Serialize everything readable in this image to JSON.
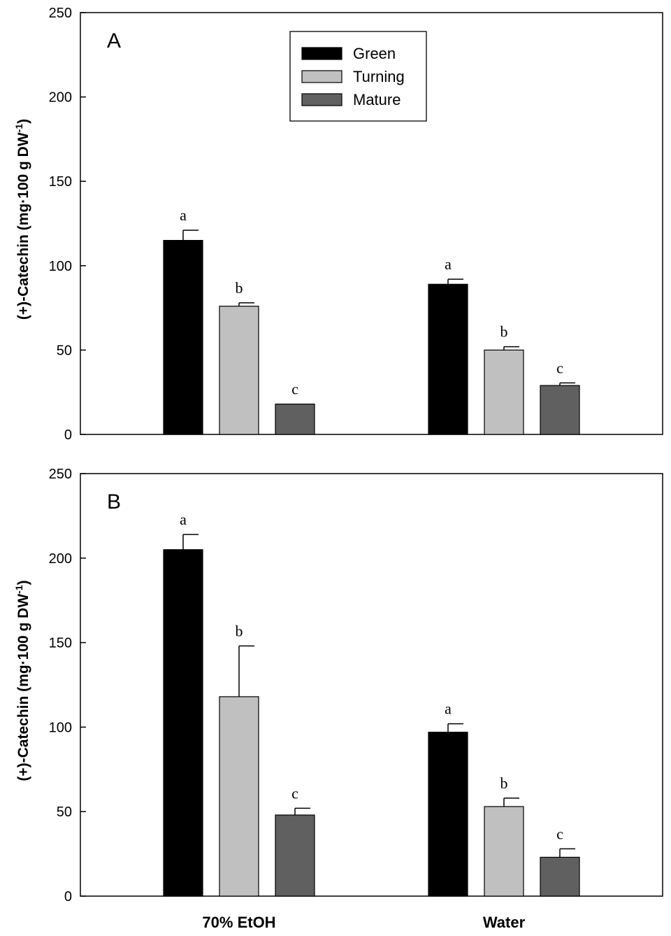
{
  "chart_data": [
    {
      "type": "bar",
      "panel_label": "A",
      "title": "",
      "xlabel": "",
      "ylabel": "(+)-Catechin (mg·100 g DW",
      "ylabel_sup": "-1",
      "ylabel_close": ")",
      "ylim": [
        0,
        250
      ],
      "yticks": [
        0,
        50,
        100,
        150,
        200,
        250
      ],
      "categories": [
        "70% EtOH",
        "Water"
      ],
      "show_category_labels": false,
      "legend": {
        "placement": "top-center"
      },
      "series": [
        {
          "name": "Green",
          "color": "#000000",
          "values": [
            115,
            89
          ],
          "errors": [
            6,
            3
          ],
          "letters": [
            "a",
            "a"
          ]
        },
        {
          "name": "Turning",
          "color": "#c0c0c0",
          "values": [
            76,
            50
          ],
          "errors": [
            2,
            2
          ],
          "letters": [
            "b",
            "b"
          ]
        },
        {
          "name": "Mature",
          "color": "#606060",
          "values": [
            18,
            29
          ],
          "errors": [
            0,
            1.5
          ],
          "letters": [
            "c",
            "c"
          ]
        }
      ]
    },
    {
      "type": "bar",
      "panel_label": "B",
      "title": "",
      "xlabel": "",
      "ylabel": "(+)-Catechin (mg·100 g DW",
      "ylabel_sup": "-1",
      "ylabel_close": ")",
      "ylim": [
        0,
        250
      ],
      "yticks": [
        0,
        50,
        100,
        150,
        200,
        250
      ],
      "categories": [
        "70% EtOH",
        "Water"
      ],
      "show_category_labels": true,
      "legend": null,
      "series": [
        {
          "name": "Green",
          "color": "#000000",
          "values": [
            205,
            97
          ],
          "errors": [
            9,
            5
          ],
          "letters": [
            "a",
            "a"
          ]
        },
        {
          "name": "Turning",
          "color": "#c0c0c0",
          "values": [
            118,
            53
          ],
          "errors": [
            30,
            5
          ],
          "letters": [
            "b",
            "b"
          ]
        },
        {
          "name": "Mature",
          "color": "#606060",
          "values": [
            48,
            23
          ],
          "errors": [
            4,
            5
          ],
          "letters": [
            "c",
            "c"
          ]
        }
      ]
    }
  ]
}
